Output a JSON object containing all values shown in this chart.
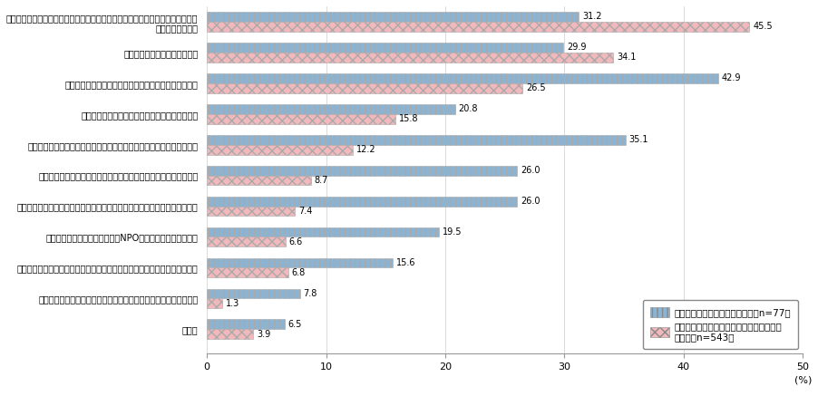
{
  "categories": [
    "職員を対象にテレワーク（在宅勤務制度・所属部署のある庁舎以外で勤務できる\n制度など）を導入",
    "テレワークに関する調査・研究",
    "他地域の企業を対象にサテライトオフィスの設置を誘致",
    "テレワークを導入する企業等に対する補助・助成",
    "テレワークの普及・啓発活動（セミナー開催・パンフレット配布など）",
    "テレワークにより就業する・就業を希望する住民を対象とした研修",
    "テレワークセンター等を設置・運営（第三セクターによるものを含みます）",
    "テレワーカーを支援する団体（NPO等）や個人を育成・後援",
    "テレワーク導入を検討する企業等に対する指導・助言（指導員の派遣など）",
    "地域のテレワーカーやクラウドソーシング従事者への優先的な発注",
    "その他"
  ],
  "blue_values": [
    31.2,
    29.9,
    42.9,
    20.8,
    35.1,
    26.0,
    26.0,
    19.5,
    15.6,
    7.8,
    6.5
  ],
  "pink_values": [
    45.5,
    34.1,
    26.5,
    15.8,
    12.2,
    8.7,
    7.4,
    6.6,
    6.8,
    1.3,
    3.9
  ],
  "blue_color": "#8BB4D4",
  "pink_color": "#F2B8BC",
  "blue_hatch": "|||",
  "pink_hatch": "xxx",
  "legend_blue": "既に取組を促進している自治体（n=77）",
  "legend_pink": "関心があるが、まだ取組を実施していない\n自治体（n=543）",
  "xlabel": "(%)",
  "xlim": [
    0,
    50
  ],
  "xticks": [
    0,
    10,
    20,
    30,
    40,
    50
  ],
  "bar_height": 0.32,
  "figsize": [
    9.02,
    4.37
  ],
  "dpi": 100
}
